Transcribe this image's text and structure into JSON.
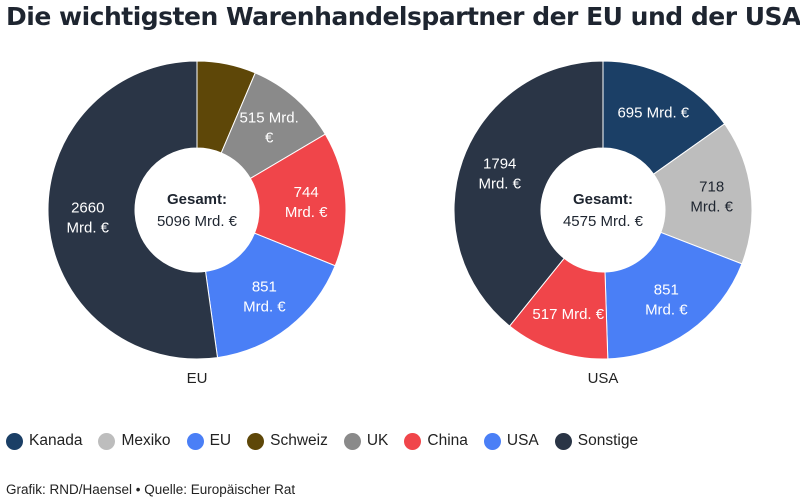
{
  "title": "Die wichtigsten Warenhandelspartner der EU und der USA",
  "footer": "Grafik: RND/Haensel • Quelle: Europäischer Rat",
  "legend": [
    {
      "label": "Kanada",
      "color": "#1b3f66"
    },
    {
      "label": "Mexiko",
      "color": "#bdbdbd"
    },
    {
      "label": "EU",
      "color": "#4a7ff6"
    },
    {
      "label": "Schweiz",
      "color": "#5e4708"
    },
    {
      "label": "UK",
      "color": "#8a8a8a"
    },
    {
      "label": "China",
      "color": "#f0454a"
    },
    {
      "label": "USA",
      "color": "#4a7ff6"
    },
    {
      "label": "Sonstige",
      "color": "#2a3546"
    }
  ],
  "chart_data": [
    {
      "type": "pie",
      "name": "EU",
      "center_title": "Gesamt:",
      "center_value": "5096 Mrd. €",
      "slices": [
        {
          "category": "Schweiz",
          "value": 326,
          "label": [],
          "color": "#5e4708",
          "text_color": "#ffffff"
        },
        {
          "category": "UK",
          "value": 515,
          "label": [
            "515 Mrd.",
            "€"
          ],
          "color": "#8a8a8a",
          "text_color": "#ffffff"
        },
        {
          "category": "China",
          "value": 744,
          "label": [
            "744",
            "Mrd. €"
          ],
          "color": "#f0454a",
          "text_color": "#ffffff"
        },
        {
          "category": "USA",
          "value": 851,
          "label": [
            "851",
            "Mrd. €"
          ],
          "color": "#4a7ff6",
          "text_color": "#ffffff"
        },
        {
          "category": "Sonstige",
          "value": 2660,
          "label": [
            "2660",
            "Mrd. €"
          ],
          "color": "#2a3546",
          "text_color": "#ffffff"
        }
      ]
    },
    {
      "type": "pie",
      "name": "USA",
      "center_title": "Gesamt:",
      "center_value": "4575 Mrd. €",
      "slices": [
        {
          "category": "Kanada",
          "value": 695,
          "label": [
            "695 Mrd. €"
          ],
          "color": "#1b3f66",
          "text_color": "#ffffff"
        },
        {
          "category": "Mexiko",
          "value": 718,
          "label": [
            "718",
            "Mrd. €"
          ],
          "color": "#bdbdbd",
          "text_color": "#1e2530"
        },
        {
          "category": "EU",
          "value": 851,
          "label": [
            "851",
            "Mrd. €"
          ],
          "color": "#4a7ff6",
          "text_color": "#ffffff"
        },
        {
          "category": "China",
          "value": 517,
          "label": [
            "517 Mrd. €"
          ],
          "color": "#f0454a",
          "text_color": "#ffffff"
        },
        {
          "category": "Sonstige",
          "value": 1794,
          "label": [
            "1794",
            "Mrd. €"
          ],
          "color": "#2a3546",
          "text_color": "#ffffff"
        }
      ]
    }
  ]
}
